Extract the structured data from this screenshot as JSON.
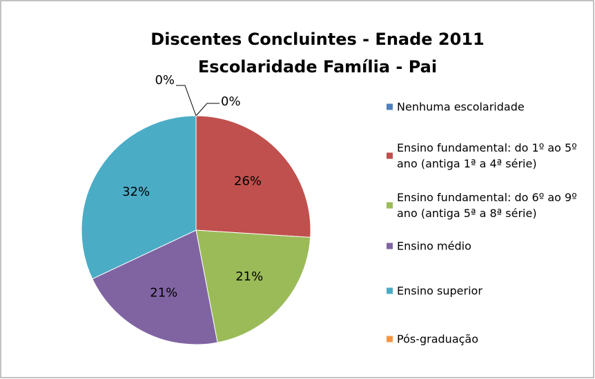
{
  "chart_data": {
    "type": "pie",
    "title": "Discentes Concluintes - Enade 2011",
    "subtitle": "Escolaridade Família - Pai",
    "categories": [
      "Nenhuma escolaridade",
      "Ensino fundamental: do 1º ao 5º ano (antiga 1ª a 4ª série)",
      "Ensino fundamental: do 6º ao 9º ano (antiga 5ª a 8ª série)",
      "Ensino médio",
      "Ensino superior",
      "Pós-graduação"
    ],
    "values": [
      0,
      26,
      21,
      21,
      32,
      0
    ],
    "value_labels": [
      "0%",
      "26%",
      "21%",
      "21%",
      "32%",
      "0%"
    ],
    "colors": [
      "#4f81bd",
      "#c0504d",
      "#9bbb59",
      "#8064a2",
      "#4bacc6",
      "#f79646"
    ],
    "legend": "right"
  }
}
